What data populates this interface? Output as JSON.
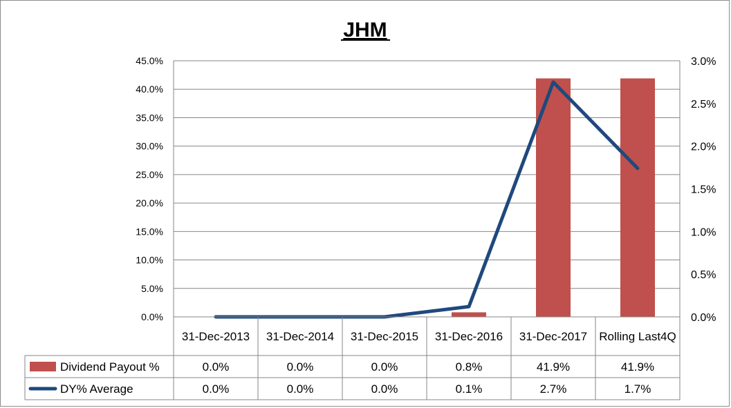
{
  "chart_data": {
    "type": "bar",
    "title": "JHM",
    "categories": [
      "31-Dec-2013",
      "31-Dec-2014",
      "31-Dec-2015",
      "31-Dec-2016",
      "31-Dec-2017",
      "Rolling Last4Q"
    ],
    "series": [
      {
        "name": "Dividend Payout %",
        "type": "bar",
        "axis": "left",
        "color": "#c0504d",
        "values": [
          0.0,
          0.0,
          0.0,
          0.8,
          41.9,
          41.9
        ],
        "labels": [
          "0.0%",
          "0.0%",
          "0.0%",
          "0.8%",
          "41.9%",
          "41.9%"
        ]
      },
      {
        "name": "DY% Average",
        "type": "line",
        "axis": "right",
        "color": "#1f497d",
        "values": [
          0.0,
          0.0,
          0.0,
          0.12,
          2.75,
          1.74
        ],
        "labels": [
          "0.0%",
          "0.0%",
          "0.0%",
          "0.1%",
          "2.7%",
          "1.7%"
        ]
      }
    ],
    "y_left": {
      "ylim": [
        0,
        45
      ],
      "ticks": [
        "0.0%",
        "5.0%",
        "10.0%",
        "15.0%",
        "20.0%",
        "25.0%",
        "30.0%",
        "35.0%",
        "40.0%",
        "45.0%"
      ]
    },
    "y_right": {
      "ylim": [
        0,
        3
      ],
      "ticks": [
        "0.0%",
        "0.5%",
        "1.0%",
        "1.5%",
        "2.0%",
        "2.5%",
        "3.0%"
      ]
    },
    "grid": true,
    "legend": "data-table"
  }
}
